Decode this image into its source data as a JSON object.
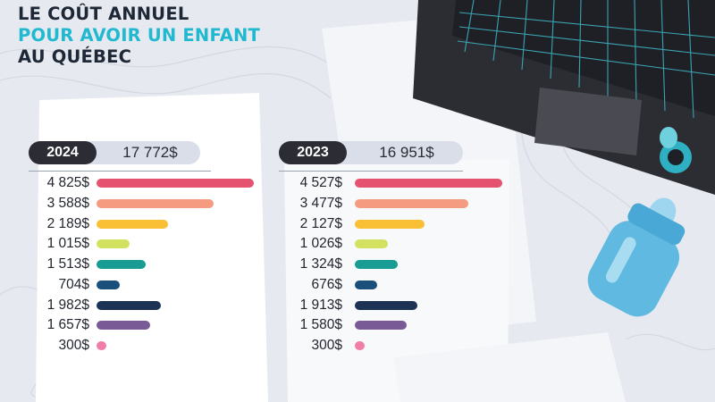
{
  "header": {
    "line1": "LE COÛT ANNUEL",
    "line2": "POUR AVOIR UN ENFANT",
    "line3": "AU QUÉBEC"
  },
  "colors": {
    "title_dark": "#1e2735",
    "title_accent": "#20b9d0",
    "pill_dark": "#2b2c34",
    "pill_light": "#d9dee8",
    "bars": [
      "#e5526f",
      "#f59b80",
      "#fac035",
      "#d3e160",
      "#189c93",
      "#1a4f7b",
      "#1c3355",
      "#7a5a96",
      "#f07ea8"
    ]
  },
  "chart_data": [
    {
      "type": "bar",
      "orientation": "horizontal",
      "year": "2024",
      "total": 17772,
      "total_label": "17 772$",
      "values": [
        4825,
        3588,
        2189,
        1015,
        1513,
        704,
        1982,
        1657,
        300
      ],
      "value_labels": [
        "4 825$",
        "3 588$",
        "2 189$",
        "1 015$",
        "1 513$",
        "704$",
        "1 982$",
        "1 657$",
        "300$"
      ]
    },
    {
      "type": "bar",
      "orientation": "horizontal",
      "year": "2023",
      "total": 16951,
      "total_label": "16 951$",
      "values": [
        4527,
        3477,
        2127,
        1026,
        1324,
        676,
        1913,
        1580,
        300
      ],
      "value_labels": [
        "4 527$",
        "3 477$",
        "2 127$",
        "1 026$",
        "1 324$",
        "676$",
        "1 913$",
        "1 580$",
        "300$"
      ]
    }
  ]
}
